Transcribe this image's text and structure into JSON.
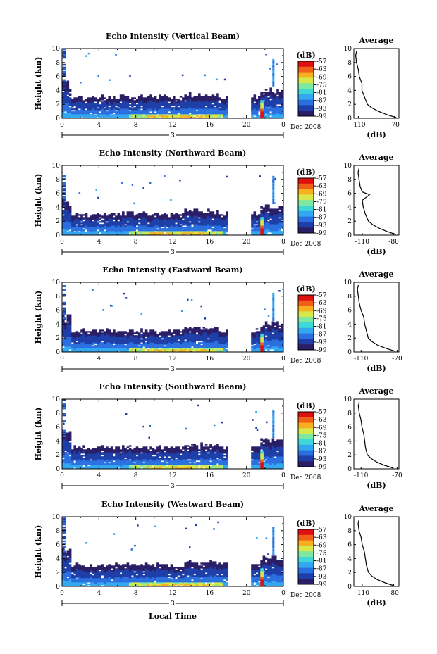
{
  "figure": {
    "date_label": "Dec 2008",
    "day_marker": "3",
    "xlabel": "Local Time",
    "cbar_unit": "(dB)",
    "avg_title": "Average",
    "avg_xlabel": "(dB)"
  },
  "chart_data": [
    {
      "type": "heatmap",
      "title": "Echo Intensity (Vertical Beam)",
      "ylabel": "Height (km)",
      "xlim": [
        0,
        24
      ],
      "ylim": [
        0,
        10
      ],
      "xticks": [
        "0",
        "4",
        "8",
        "12",
        "16",
        "20",
        "0"
      ],
      "yticks": [
        "0",
        "2",
        "4",
        "6",
        "8",
        "10"
      ],
      "colorbar": {
        "unit": "(dB)",
        "ticks": [
          -57,
          -63,
          -69,
          -75,
          -81,
          -87,
          -93,
          -99
        ],
        "range": [
          -99,
          -57
        ]
      },
      "data_gap_hours": [
        17.8,
        20.3
      ],
      "average_profile": {
        "title": "Average",
        "xlabel": "(dB)",
        "xticks": [
          "-110",
          "-70"
        ],
        "xlim": [
          -115,
          -65
        ],
        "height_km": [
          0.1,
          0.5,
          1.0,
          1.5,
          2.0,
          3.0,
          4.0,
          5.0,
          6.0,
          7.0,
          8.0,
          9.0,
          9.6
        ],
        "value_db": [
          -68,
          -78,
          -88,
          -95,
          -100,
          -103,
          -106,
          -106,
          -109,
          -110,
          -112,
          -113,
          -112
        ]
      }
    },
    {
      "type": "heatmap",
      "title": "Echo Intensity (Northward Beam)",
      "ylabel": "Height (km)",
      "xlim": [
        0,
        24
      ],
      "ylim": [
        0,
        10
      ],
      "xticks": [
        "0",
        "4",
        "8",
        "12",
        "16",
        "20",
        "0"
      ],
      "yticks": [
        "0",
        "2",
        "4",
        "6",
        "8",
        "10"
      ],
      "colorbar": {
        "unit": "(dB)",
        "ticks": [
          -57,
          -63,
          -69,
          -75,
          -81,
          -87,
          -93,
          -99
        ],
        "range": [
          -99,
          -57
        ]
      },
      "data_gap_hours": [
        17.8,
        20.3
      ],
      "average_profile": {
        "title": "Average",
        "xlabel": "(dB)",
        "xticks": [
          "-110",
          "-80"
        ],
        "xlim": [
          -118,
          -75
        ],
        "height_km": [
          0.1,
          0.5,
          1.0,
          1.5,
          2.0,
          3.0,
          4.0,
          5.0,
          5.8,
          6.2,
          7.0,
          8.0,
          9.0,
          9.6
        ],
        "value_db": [
          -78,
          -86,
          -94,
          -100,
          -104,
          -107,
          -109,
          -110,
          -103,
          -110,
          -112,
          -113,
          -114,
          -113
        ]
      }
    },
    {
      "type": "heatmap",
      "title": "Echo Intensity (Eastward Beam)",
      "ylabel": "Height (km)",
      "xlim": [
        0,
        24
      ],
      "ylim": [
        0,
        10
      ],
      "xticks": [
        "0",
        "4",
        "8",
        "12",
        "16",
        "20",
        "0"
      ],
      "yticks": [
        "0",
        "2",
        "4",
        "6",
        "8",
        "10"
      ],
      "colorbar": {
        "unit": "(dB)",
        "ticks": [
          -57,
          -63,
          -69,
          -75,
          -81,
          -87,
          -93,
          -99
        ],
        "range": [
          -99,
          -57
        ]
      },
      "data_gap_hours": [
        17.8,
        20.3
      ],
      "average_profile": {
        "title": "Average",
        "xlabel": "(dB)",
        "xticks": [
          "-110",
          "-70"
        ],
        "xlim": [
          -118,
          -68
        ],
        "height_km": [
          0.1,
          0.5,
          1.0,
          1.5,
          2.0,
          3.0,
          4.0,
          5.0,
          6.0,
          7.0,
          8.0,
          9.0,
          9.6
        ],
        "value_db": [
          -72,
          -82,
          -92,
          -98,
          -102,
          -104,
          -106,
          -107,
          -110,
          -112,
          -113,
          -114,
          -113
        ]
      }
    },
    {
      "type": "heatmap",
      "title": "Echo Intensity (Southward Beam)",
      "ylabel": "Height (km)",
      "xlim": [
        0,
        24
      ],
      "ylim": [
        0,
        10
      ],
      "xticks": [
        "0",
        "4",
        "8",
        "12",
        "16",
        "20",
        "0"
      ],
      "yticks": [
        "0",
        "2",
        "4",
        "6",
        "8",
        "10"
      ],
      "colorbar": {
        "unit": "(dB)",
        "ticks": [
          -57,
          -63,
          -69,
          -75,
          -81,
          -87,
          -93,
          -99
        ],
        "range": [
          -99,
          -57
        ]
      },
      "data_gap_hours": [
        17.8,
        20.3
      ],
      "average_profile": {
        "title": "Average",
        "xlabel": "(dB)",
        "xticks": [
          "-110",
          "-70"
        ],
        "xlim": [
          -118,
          -68
        ],
        "height_km": [
          0.1,
          0.5,
          1.0,
          1.5,
          2.0,
          3.0,
          4.0,
          5.0,
          6.0,
          7.0,
          8.0,
          9.0,
          9.6
        ],
        "value_db": [
          -74,
          -84,
          -93,
          -99,
          -103,
          -105,
          -106,
          -107,
          -109,
          -110,
          -112,
          -113,
          -112
        ]
      }
    },
    {
      "type": "heatmap",
      "title": "Echo Intensity (Westward Beam)",
      "ylabel": "Height (km)",
      "xlim": [
        0,
        24
      ],
      "ylim": [
        0,
        10
      ],
      "xticks": [
        "0",
        "4",
        "8",
        "12",
        "16",
        "20",
        "0"
      ],
      "yticks": [
        "0",
        "2",
        "4",
        "6",
        "8",
        "10"
      ],
      "colorbar": {
        "unit": "(dB)",
        "ticks": [
          -57,
          -63,
          -69,
          -75,
          -81,
          -87,
          -93,
          -99
        ],
        "range": [
          -99,
          -57
        ]
      },
      "data_gap_hours": [
        17.8,
        20.3
      ],
      "average_profile": {
        "title": "Average",
        "xlabel": "(dB)",
        "xticks": [
          "-110",
          "-80"
        ],
        "xlim": [
          -118,
          -75
        ],
        "height_km": [
          0.1,
          0.5,
          1.0,
          1.5,
          2.0,
          3.0,
          4.0,
          5.0,
          6.0,
          7.0,
          8.0,
          9.0,
          9.6
        ],
        "value_db": [
          -80,
          -88,
          -96,
          -101,
          -104,
          -106,
          -107,
          -108,
          -110,
          -111,
          -113,
          -114,
          -113
        ]
      }
    }
  ],
  "colors": {
    "scale": [
      "#2a1f66",
      "#1f3fa8",
      "#2a6fe0",
      "#33a8f0",
      "#3fd8d8",
      "#7fe8a0",
      "#d8e84a",
      "#f8b020",
      "#f06018",
      "#e01010"
    ],
    "line": "#000000"
  }
}
